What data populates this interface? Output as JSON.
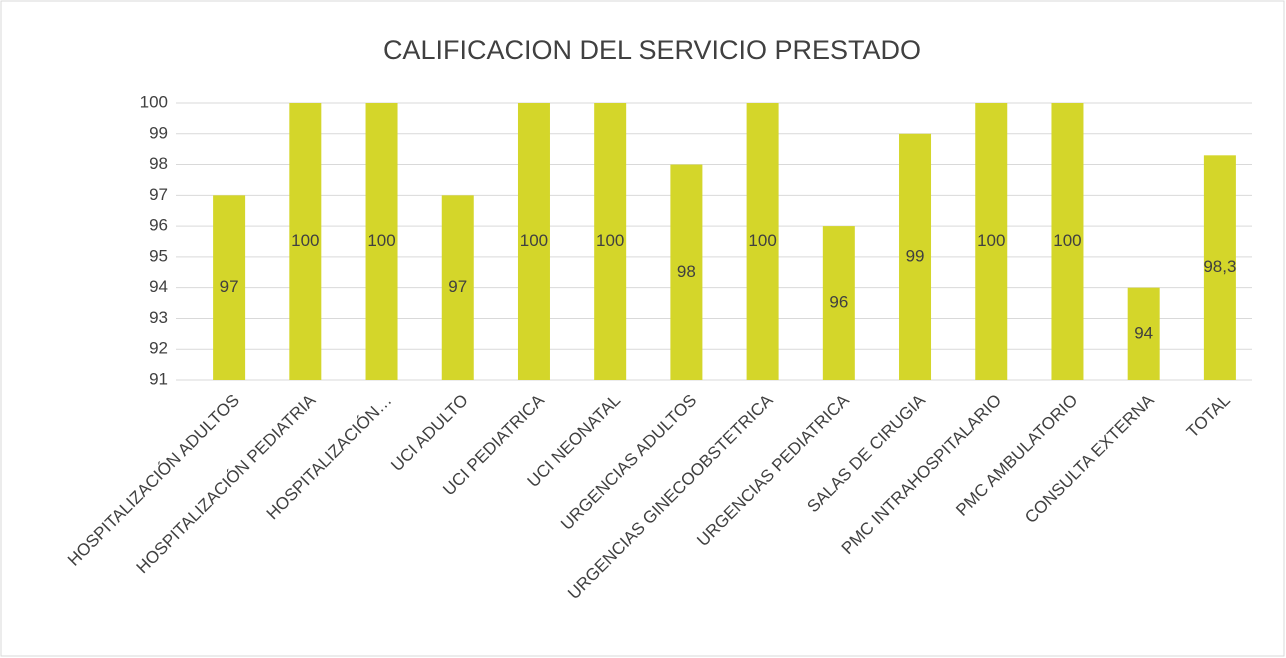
{
  "chart_data": {
    "type": "bar",
    "title": "CALIFICACION DEL SERVICIO PRESTADO",
    "categories": [
      "HOSPITALIZACIÓN ADULTOS",
      "HOSPITALIZACIÓN PEDIATRIA",
      "HOSPITALIZACIÓN…",
      "UCI ADULTO",
      "UCI PEDIATRICA",
      "UCI NEONATAL",
      "URGENCIAS ADULTOS",
      "URGENCIAS GINECOOBSTETRICA",
      "URGENCIAS PEDIATRICA",
      "SALAS DE CIRUGIA",
      "PMC INTRAHOSPITALARIO",
      "PMC AMBULATORIO",
      "CONSULTA EXTERNA",
      "TOTAL"
    ],
    "values": [
      97,
      100,
      100,
      97,
      100,
      100,
      98,
      100,
      96,
      99,
      100,
      100,
      94,
      98.3
    ],
    "value_labels": [
      "97",
      "100",
      "100",
      "97",
      "100",
      "100",
      "98",
      "100",
      "96",
      "99",
      "100",
      "100",
      "94",
      "98,3"
    ],
    "color": "#d4d62a",
    "ylim": [
      91,
      100
    ],
    "yticks": [
      91,
      92,
      93,
      94,
      95,
      96,
      97,
      98,
      99,
      100
    ],
    "grid": true
  }
}
